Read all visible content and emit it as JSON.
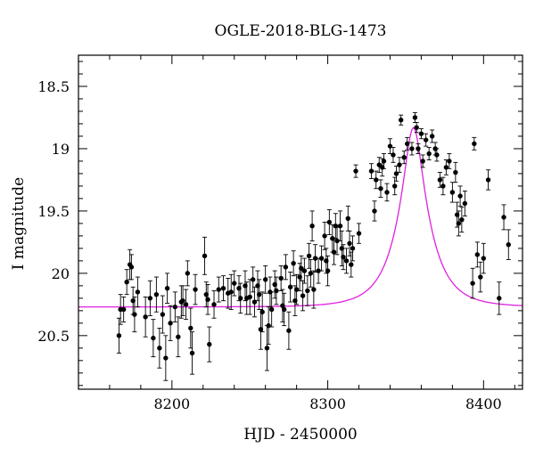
{
  "chart_data": {
    "type": "scatter",
    "title": "OGLE-2018-BLG-1473",
    "xlabel": "HJD - 2450000",
    "ylabel": "I magnitude",
    "xlim": [
      8140,
      8425
    ],
    "ylim": [
      20.93,
      18.25
    ],
    "y_inverted": true,
    "x_major_ticks": [
      8200,
      8300,
      8400
    ],
    "y_major_ticks": [
      18.5,
      19,
      19.5,
      20,
      20.5
    ],
    "x_minor_step": 20,
    "y_minor_step": 0.1,
    "grid": false,
    "colors": {
      "data": "#000000",
      "model": "#e020e0"
    },
    "series": [
      {
        "points": [
          [
            8166,
            20.5,
            0.14
          ],
          [
            8167,
            20.29,
            0.12
          ],
          [
            8169,
            20.29,
            0.1
          ],
          [
            8171,
            20.07,
            0.1
          ],
          [
            8173,
            19.93,
            0.12
          ],
          [
            8174,
            19.95,
            0.1
          ],
          [
            8175,
            20.22,
            0.11
          ],
          [
            8176,
            20.33,
            0.14
          ],
          [
            8178,
            20.15,
            0.12
          ],
          [
            8183,
            20.35,
            0.16
          ],
          [
            8186,
            20.2,
            0.14
          ],
          [
            8188,
            20.52,
            0.15
          ],
          [
            8190,
            20.17,
            0.14
          ],
          [
            8192,
            20.6,
            0.16
          ],
          [
            8194,
            20.33,
            0.15
          ],
          [
            8196,
            20.68,
            0.18
          ],
          [
            8197,
            20.12,
            0.12
          ],
          [
            8199,
            20.4,
            0.14
          ],
          [
            8202,
            20.27,
            0.12
          ],
          [
            8204,
            20.51,
            0.16
          ],
          [
            8206,
            20.23,
            0.13
          ],
          [
            8207,
            20.22,
            0.12
          ],
          [
            8209,
            20.25,
            0.12
          ],
          [
            8210,
            20.0,
            0.1
          ],
          [
            8212,
            20.44,
            0.16
          ],
          [
            8213,
            20.64,
            0.17
          ],
          [
            8215,
            20.13,
            0.12
          ],
          [
            8221,
            19.86,
            0.15
          ],
          [
            8222,
            20.17,
            0.1
          ],
          [
            8223,
            20.21,
            0.12
          ],
          [
            8224,
            20.57,
            0.14
          ],
          [
            8227,
            20.25,
            0.11
          ],
          [
            8230,
            20.13,
            0.1
          ],
          [
            8233,
            20.12,
            0.1
          ],
          [
            8236,
            20.16,
            0.12
          ],
          [
            8238,
            20.15,
            0.14
          ],
          [
            8240,
            20.08,
            0.1
          ],
          [
            8243,
            20.12,
            0.1
          ],
          [
            8244,
            20.2,
            0.12
          ],
          [
            8247,
            20.1,
            0.12
          ],
          [
            8248,
            20.2,
            0.13
          ],
          [
            8250,
            20.19,
            0.14
          ],
          [
            8252,
            20.05,
            0.1
          ],
          [
            8253,
            20.23,
            0.12
          ],
          [
            8255,
            20.1,
            0.12
          ],
          [
            8256,
            20.17,
            0.12
          ],
          [
            8257,
            20.45,
            0.16
          ],
          [
            8258,
            20.31,
            0.16
          ],
          [
            8260,
            20.05,
            0.11
          ],
          [
            8261,
            20.6,
            0.18
          ],
          [
            8262,
            20.42,
            0.15
          ],
          [
            8263,
            20.15,
            0.12
          ],
          [
            8264,
            20.29,
            0.14
          ],
          [
            8266,
            20.09,
            0.11
          ],
          [
            8267,
            20.14,
            0.11
          ],
          [
            8270,
            20.04,
            0.1
          ],
          [
            8271,
            20.26,
            0.13
          ],
          [
            8272,
            20.29,
            0.13
          ],
          [
            8273,
            19.95,
            0.1
          ],
          [
            8275,
            20.46,
            0.15
          ],
          [
            8276,
            20.11,
            0.12
          ],
          [
            8278,
            19.92,
            0.1
          ],
          [
            8279,
            20.22,
            0.12
          ],
          [
            8280,
            20.13,
            0.12
          ],
          [
            8282,
            20.03,
            0.11
          ],
          [
            8283,
            19.96,
            0.1
          ],
          [
            8284,
            20.18,
            0.12
          ],
          [
            8285,
            19.98,
            0.1
          ],
          [
            8287,
            20.14,
            0.12
          ],
          [
            8288,
            19.86,
            0.1
          ],
          [
            8289,
            20.0,
            0.11
          ],
          [
            8290,
            19.62,
            0.12
          ],
          [
            8291,
            20.13,
            0.15
          ],
          [
            8292,
            19.88,
            0.11
          ],
          [
            8294,
            19.98,
            0.1
          ],
          [
            8296,
            19.88,
            0.1
          ],
          [
            8298,
            19.7,
            0.11
          ],
          [
            8299,
            19.9,
            0.1
          ],
          [
            8300,
            19.98,
            0.12
          ],
          [
            8301,
            19.59,
            0.1
          ],
          [
            8303,
            19.72,
            0.11
          ],
          [
            8304,
            19.83,
            0.1
          ],
          [
            8305,
            19.62,
            0.1
          ],
          [
            8306,
            19.74,
            0.11
          ],
          [
            8308,
            19.62,
            0.12
          ],
          [
            8309,
            19.8,
            0.14
          ],
          [
            8310,
            19.87,
            0.1
          ],
          [
            8312,
            19.9,
            0.1
          ],
          [
            8313,
            19.56,
            0.1
          ],
          [
            8314,
            19.76,
            0.1
          ],
          [
            8315,
            19.93,
            0.1
          ],
          [
            8316,
            19.8,
            0.1
          ],
          [
            8318,
            19.18,
            0.05
          ],
          [
            8320,
            19.68,
            0.08
          ],
          [
            8328,
            19.18,
            0.06
          ],
          [
            8330,
            19.5,
            0.08
          ],
          [
            8331,
            19.25,
            0.07
          ],
          [
            8333,
            19.13,
            0.06
          ],
          [
            8334,
            19.32,
            0.07
          ],
          [
            8335,
            19.15,
            0.07
          ],
          [
            8336,
            19.1,
            0.06
          ],
          [
            8338,
            19.35,
            0.07
          ],
          [
            8340,
            18.98,
            0.06
          ],
          [
            8342,
            19.05,
            0.06
          ],
          [
            8343,
            19.3,
            0.07
          ],
          [
            8344,
            19.2,
            0.06
          ],
          [
            8346,
            19.13,
            0.06
          ],
          [
            8347,
            18.77,
            0.04
          ],
          [
            8349,
            19.07,
            0.05
          ],
          [
            8351,
            18.96,
            0.05
          ],
          [
            8354,
            19.0,
            0.05
          ],
          [
            8356,
            18.75,
            0.04
          ],
          [
            8357,
            18.83,
            0.04
          ],
          [
            8358,
            19.0,
            0.04
          ],
          [
            8360,
            18.88,
            0.04
          ],
          [
            8361,
            19.1,
            0.05
          ],
          [
            8363,
            18.93,
            0.05
          ],
          [
            8365,
            19.04,
            0.05
          ],
          [
            8367,
            18.9,
            0.05
          ],
          [
            8369,
            19.0,
            0.05
          ],
          [
            8370,
            19.05,
            0.05
          ],
          [
            8372,
            19.25,
            0.06
          ],
          [
            8374,
            19.3,
            0.07
          ],
          [
            8376,
            19.15,
            0.06
          ],
          [
            8378,
            19.1,
            0.06
          ],
          [
            8380,
            19.35,
            0.08
          ],
          [
            8382,
            19.19,
            0.08
          ],
          [
            8383,
            19.53,
            0.1
          ],
          [
            8384,
            19.6,
            0.1
          ],
          [
            8385,
            19.38,
            0.08
          ],
          [
            8386,
            19.57,
            0.1
          ],
          [
            8388,
            19.44,
            0.1
          ],
          [
            8393,
            20.08,
            0.12
          ],
          [
            8394,
            18.96,
            0.05
          ],
          [
            8396,
            19.85,
            0.1
          ],
          [
            8398,
            20.03,
            0.12
          ],
          [
            8400,
            19.88,
            0.12
          ],
          [
            8403,
            19.25,
            0.08
          ],
          [
            8410,
            20.2,
            0.13
          ],
          [
            8413,
            19.55,
            0.1
          ],
          [
            8416,
            19.77,
            0.12
          ]
        ]
      }
    ],
    "model_curve": {
      "t0": 8355,
      "baseline_mag": 20.27,
      "peak_mag": 18.83,
      "time_scale_days": 20
    }
  }
}
